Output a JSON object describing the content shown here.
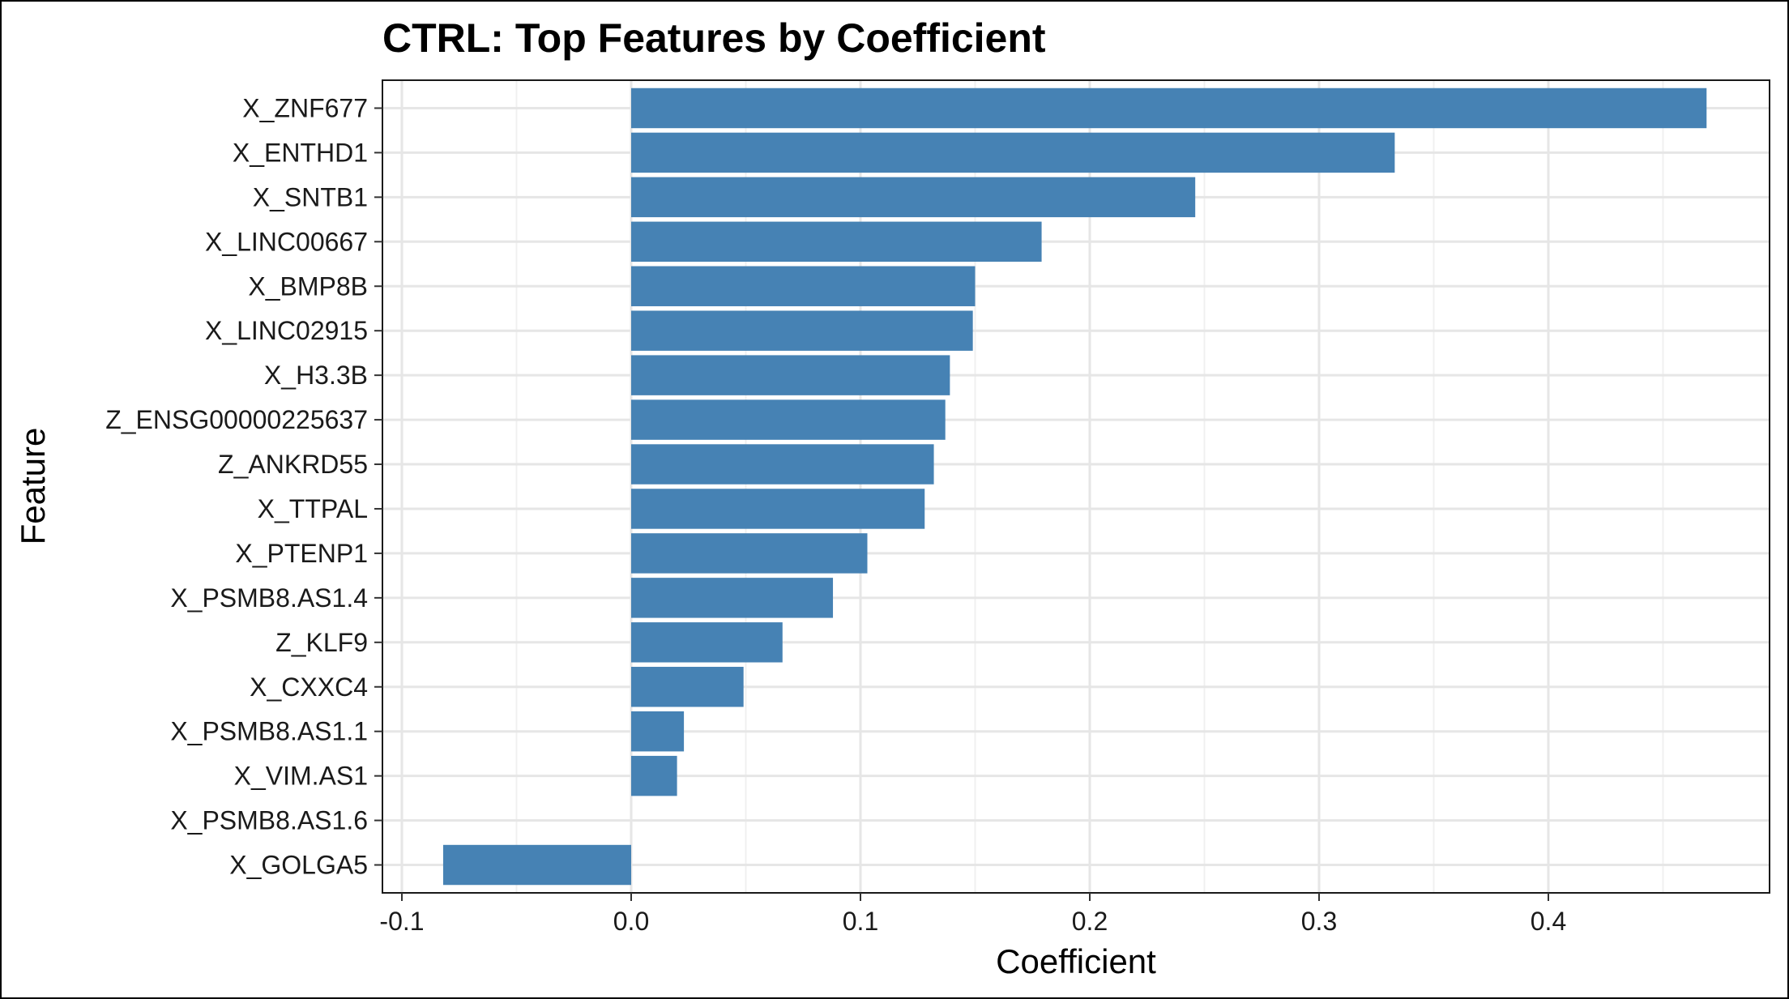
{
  "chart_data": {
    "type": "bar",
    "orientation": "horizontal",
    "title": "CTRL: Top Features by Coefficient",
    "xlabel": "Coefficient",
    "ylabel": "Feature",
    "xlim": [
      -0.1,
      0.5
    ],
    "xticks": [
      -0.1,
      0.0,
      0.1,
      0.2,
      0.3,
      0.4
    ],
    "xtick_labels": [
      "-0.1",
      "0.0",
      "0.1",
      "0.2",
      "0.3",
      "0.4"
    ],
    "grid": true,
    "bar_color": "#4682B4",
    "categories": [
      "X_ZNF677",
      "X_ENTHD1",
      "X_SNTB1",
      "X_LINC00667",
      "X_BMP8B",
      "X_LINC02915",
      "X_H3.3B",
      "Z_ENSG00000225637",
      "Z_ANKRD55",
      "X_TTPAL",
      "X_PTENP1",
      "X_PSMB8.AS1.4",
      "Z_KLF9",
      "X_CXXC4",
      "X_PSMB8.AS1.1",
      "X_VIM.AS1",
      "X_PSMB8.AS1.6",
      "X_GOLGA5"
    ],
    "values": [
      0.469,
      0.333,
      0.246,
      0.179,
      0.15,
      0.149,
      0.139,
      0.137,
      0.132,
      0.128,
      0.103,
      0.088,
      0.066,
      0.049,
      0.023,
      0.02,
      0.0,
      -0.082
    ]
  }
}
